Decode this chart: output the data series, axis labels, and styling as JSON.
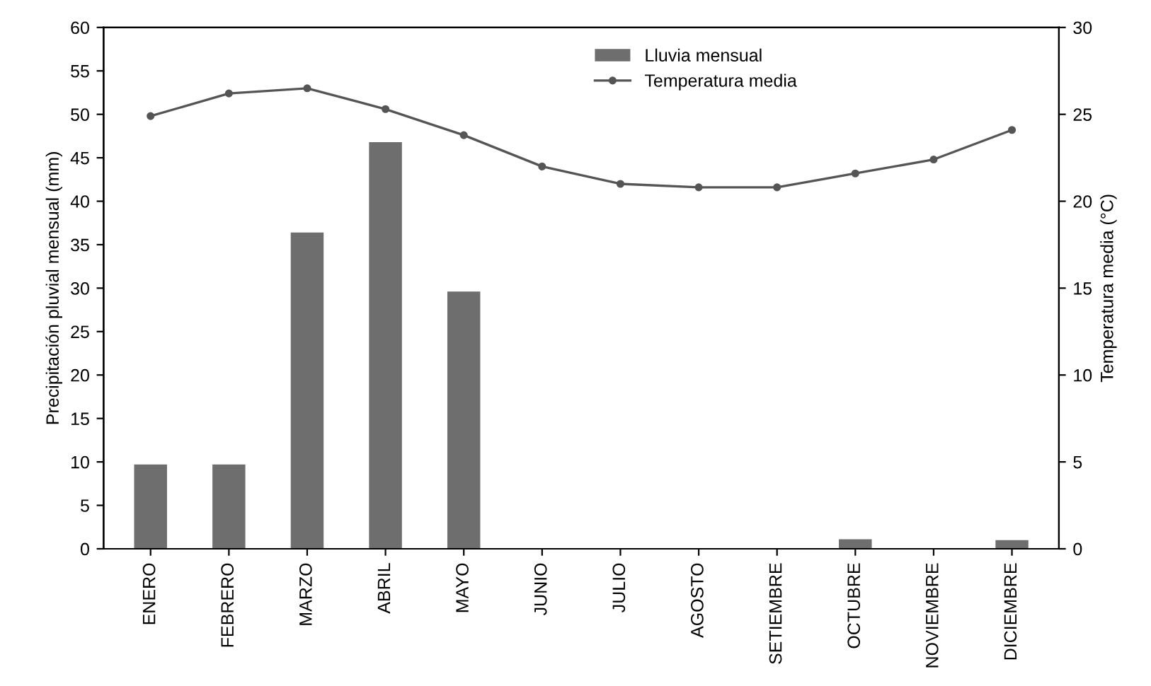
{
  "chart_data": {
    "type": "bar",
    "categories": [
      "ENERO",
      "FEBRERO",
      "MARZO",
      "ABRIL",
      "MAYO",
      "JUNIO",
      "JULIO",
      "AGOSTO",
      "SETIEMBRE",
      "OCTUBRE",
      "NOVIEMBRE",
      "DICIEMBRE"
    ],
    "series": [
      {
        "name": "Lluvia mensual",
        "color": "#6e6e6e",
        "values": [
          9.7,
          9.7,
          36.4,
          46.8,
          29.6,
          0,
          0,
          0,
          0,
          1.1,
          0,
          1.0
        ]
      },
      {
        "name": "Temperatura media",
        "type": "line",
        "axis": "y2",
        "color": "#555555",
        "marker": "circle",
        "values": [
          24.9,
          26.2,
          26.5,
          25.3,
          23.8,
          22.0,
          21.0,
          20.8,
          20.8,
          21.6,
          22.4,
          24.1
        ]
      }
    ],
    "ylabel": "Precipitación pluvial mensual (mm)",
    "y2label": "Temperatura media (°C)",
    "ylim": [
      0,
      60
    ],
    "yticks": [
      0,
      5,
      10,
      15,
      20,
      25,
      30,
      35,
      40,
      45,
      50,
      55,
      60
    ],
    "y2lim": [
      0,
      30
    ],
    "y2ticks": [
      0,
      5,
      10,
      15,
      20,
      25,
      30
    ],
    "legend": "top",
    "grid": false
  }
}
